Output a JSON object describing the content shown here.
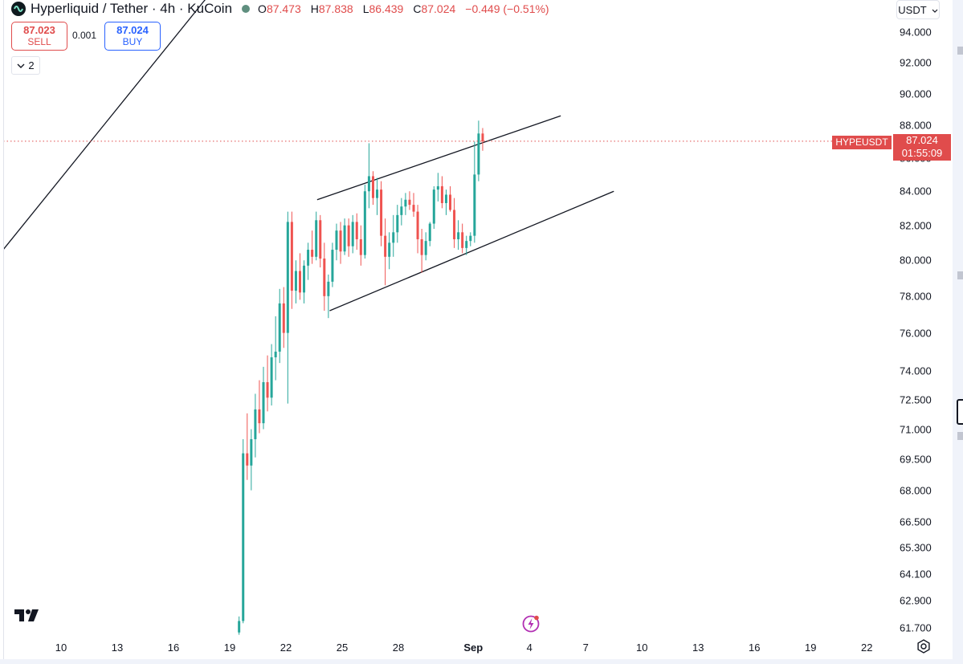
{
  "header": {
    "title": "Hyperliquid / Tether · 4h · KuCoin",
    "ohlc": [
      {
        "key": "O",
        "value": "87.473"
      },
      {
        "key": "H",
        "value": "87.838"
      },
      {
        "key": "L",
        "value": "86.439"
      },
      {
        "key": "C",
        "value": "87.024"
      }
    ],
    "change": "−0.449 (−0.51%)"
  },
  "trade": {
    "sell_price": "87.023",
    "sell_label": "SELL",
    "buy_price": "87.024",
    "buy_label": "BUY",
    "spread": "0.001"
  },
  "indicators_toggle": {
    "count": "2"
  },
  "currency": {
    "label": "USDT"
  },
  "price_label": {
    "symbol": "HYPEUSDT",
    "price": "87.024",
    "countdown": "01:55:09"
  },
  "colors": {
    "up": "#26a69a",
    "down": "#ef5350",
    "accent": "#e04c4c",
    "buy": "#2962ff"
  },
  "icons": [
    "tradingview-logo-icon",
    "flash-icon",
    "settings-icon",
    "chevron-down-icon"
  ],
  "chart_data": {
    "type": "candlestick",
    "title": "Hyperliquid / Tether · 4h · KuCoin",
    "y_ticks": [
      "94.000",
      "92.000",
      "90.000",
      "88.000",
      "86.000",
      "84.000",
      "82.000",
      "80.000",
      "78.000",
      "76.000",
      "74.000",
      "72.500",
      "71.000",
      "69.500",
      "68.000",
      "66.500",
      "65.300",
      "64.100",
      "62.900",
      "61.700"
    ],
    "x_ticks": [
      "10",
      "13",
      "16",
      "19",
      "22",
      "25",
      "28",
      "Sep",
      "4",
      "7",
      "10",
      "13",
      "16",
      "19",
      "22"
    ],
    "ylim": [
      61.0,
      95.0
    ],
    "scale": "log",
    "current_price": 87.024,
    "candles": [
      {
        "o": 61.5,
        "h": 62.2,
        "l": 61.4,
        "c": 62.0
      },
      {
        "o": 62.0,
        "h": 70.5,
        "l": 61.9,
        "c": 69.8
      },
      {
        "o": 69.8,
        "h": 71.8,
        "l": 68.5,
        "c": 69.2
      },
      {
        "o": 69.2,
        "h": 71.0,
        "l": 68.0,
        "c": 70.5
      },
      {
        "o": 70.5,
        "h": 72.8,
        "l": 69.6,
        "c": 72.0
      },
      {
        "o": 72.0,
        "h": 73.5,
        "l": 70.8,
        "c": 71.3
      },
      {
        "o": 71.3,
        "h": 74.2,
        "l": 71.0,
        "c": 73.4
      },
      {
        "o": 73.4,
        "h": 74.8,
        "l": 71.9,
        "c": 72.6
      },
      {
        "o": 72.6,
        "h": 75.4,
        "l": 72.2,
        "c": 74.7
      },
      {
        "o": 74.7,
        "h": 76.9,
        "l": 73.5,
        "c": 75.0
      },
      {
        "o": 75.0,
        "h": 78.4,
        "l": 74.4,
        "c": 77.6
      },
      {
        "o": 77.6,
        "h": 78.5,
        "l": 75.2,
        "c": 76.0
      },
      {
        "o": 76.0,
        "h": 82.8,
        "l": 72.3,
        "c": 82.2
      },
      {
        "o": 82.2,
        "h": 82.8,
        "l": 77.3,
        "c": 78.3
      },
      {
        "o": 78.3,
        "h": 80.0,
        "l": 77.6,
        "c": 79.4
      },
      {
        "o": 79.4,
        "h": 80.4,
        "l": 77.8,
        "c": 78.2
      },
      {
        "o": 78.2,
        "h": 80.0,
        "l": 77.6,
        "c": 79.7
      },
      {
        "o": 79.7,
        "h": 81.0,
        "l": 78.9,
        "c": 80.6
      },
      {
        "o": 80.6,
        "h": 81.7,
        "l": 79.8,
        "c": 80.2
      },
      {
        "o": 80.2,
        "h": 82.8,
        "l": 80.0,
        "c": 82.3
      },
      {
        "o": 82.3,
        "h": 82.6,
        "l": 79.6,
        "c": 80.1
      },
      {
        "o": 80.1,
        "h": 81.0,
        "l": 77.2,
        "c": 78.0
      },
      {
        "o": 78.0,
        "h": 79.2,
        "l": 76.8,
        "c": 78.8
      },
      {
        "o": 78.8,
        "h": 81.0,
        "l": 78.5,
        "c": 80.6
      },
      {
        "o": 80.6,
        "h": 82.1,
        "l": 80.0,
        "c": 81.7
      },
      {
        "o": 81.7,
        "h": 82.2,
        "l": 79.8,
        "c": 80.5
      },
      {
        "o": 80.5,
        "h": 82.4,
        "l": 80.3,
        "c": 82.0
      },
      {
        "o": 82.0,
        "h": 82.4,
        "l": 80.2,
        "c": 80.8
      },
      {
        "o": 80.8,
        "h": 82.6,
        "l": 80.4,
        "c": 82.2
      },
      {
        "o": 82.2,
        "h": 82.7,
        "l": 80.6,
        "c": 81.2
      },
      {
        "o": 81.2,
        "h": 82.0,
        "l": 79.7,
        "c": 80.3
      },
      {
        "o": 80.3,
        "h": 84.4,
        "l": 80.1,
        "c": 84.0
      },
      {
        "o": 84.0,
        "h": 86.9,
        "l": 83.0,
        "c": 84.9
      },
      {
        "o": 84.9,
        "h": 85.2,
        "l": 83.2,
        "c": 83.6
      },
      {
        "o": 83.6,
        "h": 84.8,
        "l": 82.6,
        "c": 84.1
      },
      {
        "o": 84.1,
        "h": 84.6,
        "l": 80.8,
        "c": 81.4
      },
      {
        "o": 81.4,
        "h": 82.4,
        "l": 78.6,
        "c": 80.2
      },
      {
        "o": 80.2,
        "h": 81.6,
        "l": 79.5,
        "c": 81.0
      },
      {
        "o": 81.0,
        "h": 82.6,
        "l": 80.2,
        "c": 81.6
      },
      {
        "o": 81.6,
        "h": 83.2,
        "l": 81.0,
        "c": 82.6
      },
      {
        "o": 82.6,
        "h": 83.6,
        "l": 82.0,
        "c": 83.1
      },
      {
        "o": 83.1,
        "h": 83.9,
        "l": 82.6,
        "c": 83.5
      },
      {
        "o": 83.5,
        "h": 84.0,
        "l": 82.9,
        "c": 83.2
      },
      {
        "o": 83.2,
        "h": 83.9,
        "l": 82.5,
        "c": 82.8
      },
      {
        "o": 82.8,
        "h": 83.2,
        "l": 80.4,
        "c": 81.2
      },
      {
        "o": 81.2,
        "h": 81.8,
        "l": 79.3,
        "c": 80.3
      },
      {
        "o": 80.3,
        "h": 81.6,
        "l": 80.0,
        "c": 81.1
      },
      {
        "o": 81.1,
        "h": 82.2,
        "l": 80.8,
        "c": 82.1
      },
      {
        "o": 82.1,
        "h": 84.3,
        "l": 81.8,
        "c": 84.1
      },
      {
        "o": 84.1,
        "h": 85.1,
        "l": 83.4,
        "c": 84.3
      },
      {
        "o": 84.3,
        "h": 84.9,
        "l": 83.0,
        "c": 83.3
      },
      {
        "o": 83.3,
        "h": 84.1,
        "l": 82.6,
        "c": 83.8
      },
      {
        "o": 83.8,
        "h": 84.3,
        "l": 82.8,
        "c": 82.9
      },
      {
        "o": 82.9,
        "h": 83.6,
        "l": 80.7,
        "c": 81.2
      },
      {
        "o": 81.2,
        "h": 82.3,
        "l": 80.6,
        "c": 81.6
      },
      {
        "o": 81.6,
        "h": 82.1,
        "l": 80.4,
        "c": 80.7
      },
      {
        "o": 80.7,
        "h": 81.4,
        "l": 80.3,
        "c": 81.1
      },
      {
        "o": 81.1,
        "h": 81.6,
        "l": 80.8,
        "c": 81.4
      },
      {
        "o": 81.4,
        "h": 87.0,
        "l": 81.0,
        "c": 85.0
      },
      {
        "o": 85.0,
        "h": 88.3,
        "l": 84.6,
        "c": 87.5
      },
      {
        "o": 87.5,
        "h": 87.84,
        "l": 86.44,
        "c": 87.02
      }
    ],
    "drawings": [
      {
        "type": "trendline",
        "from": {
          "x": "2025-08-06T20:00",
          "y": 80.5
        },
        "to": {
          "x": "2025-08-18T20:00",
          "y": 98.0
        }
      },
      {
        "type": "channel-upper",
        "from": {
          "x": "2025-08-23T16:00",
          "y": 83.5
        },
        "to": {
          "x": "2025-09-05T16:00",
          "y": 88.6
        }
      },
      {
        "type": "channel-lower",
        "from": {
          "x": "2025-08-24T08:00",
          "y": 77.2
        },
        "to": {
          "x": "2025-09-08T12:00",
          "y": 84.0
        }
      }
    ]
  }
}
